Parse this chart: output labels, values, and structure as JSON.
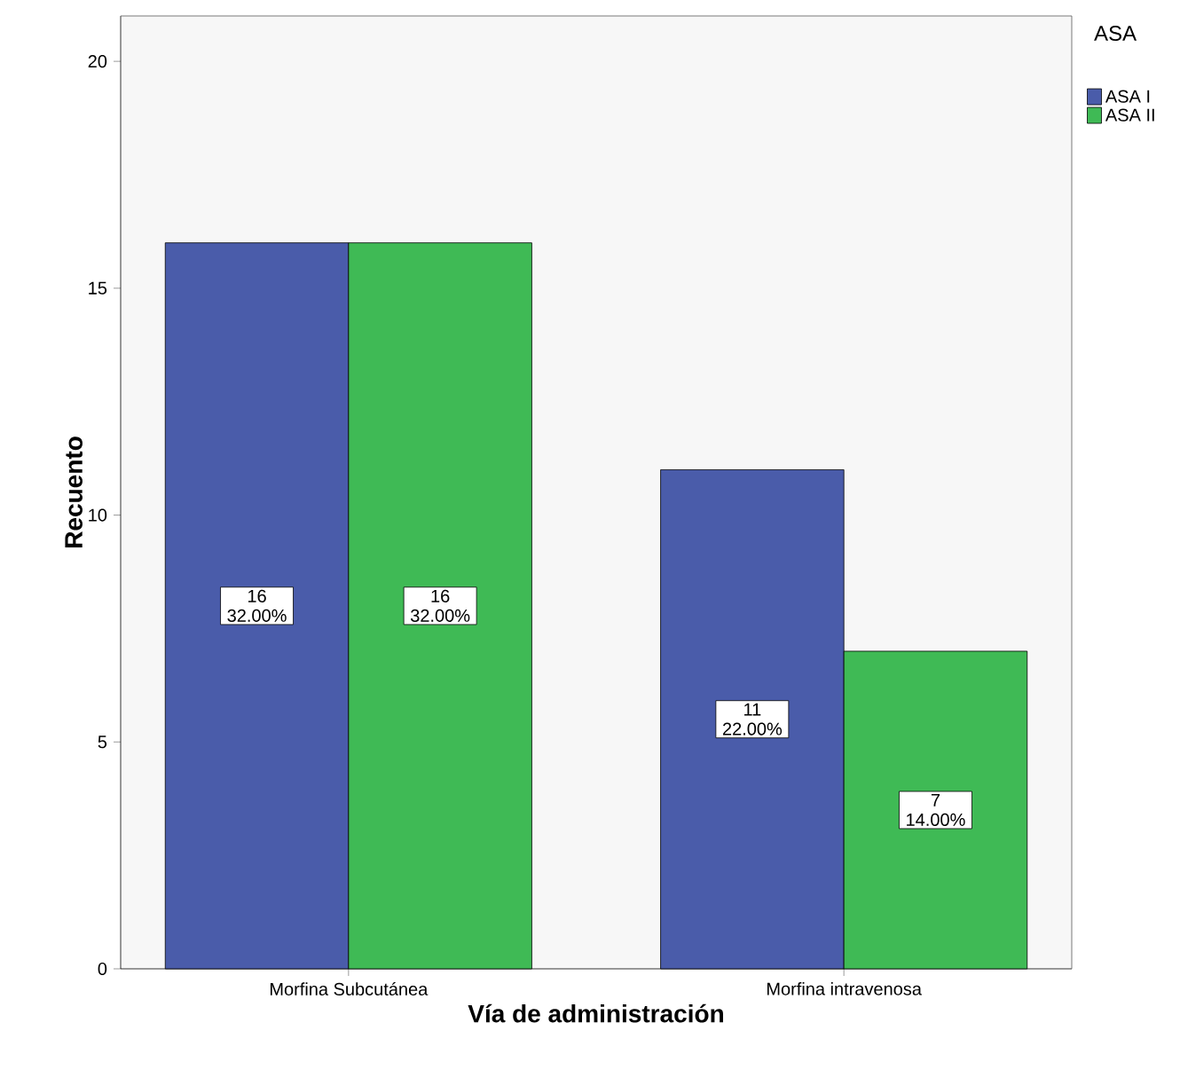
{
  "chart_data": {
    "type": "bar",
    "xlabel": "Vía de administración",
    "ylabel": "Recuento",
    "legend_title": "ASA",
    "categories": [
      "Morfina Subcutánea",
      "Morfina intravenosa"
    ],
    "series": [
      {
        "name": "ASA I",
        "color": "#4a5caa",
        "values": [
          16,
          11
        ],
        "value_labels": [
          "16 32.00%",
          "11 22.00%"
        ]
      },
      {
        "name": "ASA II",
        "color": "#3fba55",
        "values": [
          16,
          7
        ],
        "value_labels": [
          "16 32.00%",
          "7 14.00%"
        ]
      }
    ],
    "ylim": [
      0,
      21
    ],
    "yticks": [
      0,
      5,
      10,
      15,
      20
    ],
    "grid": false,
    "legend": "top right"
  }
}
